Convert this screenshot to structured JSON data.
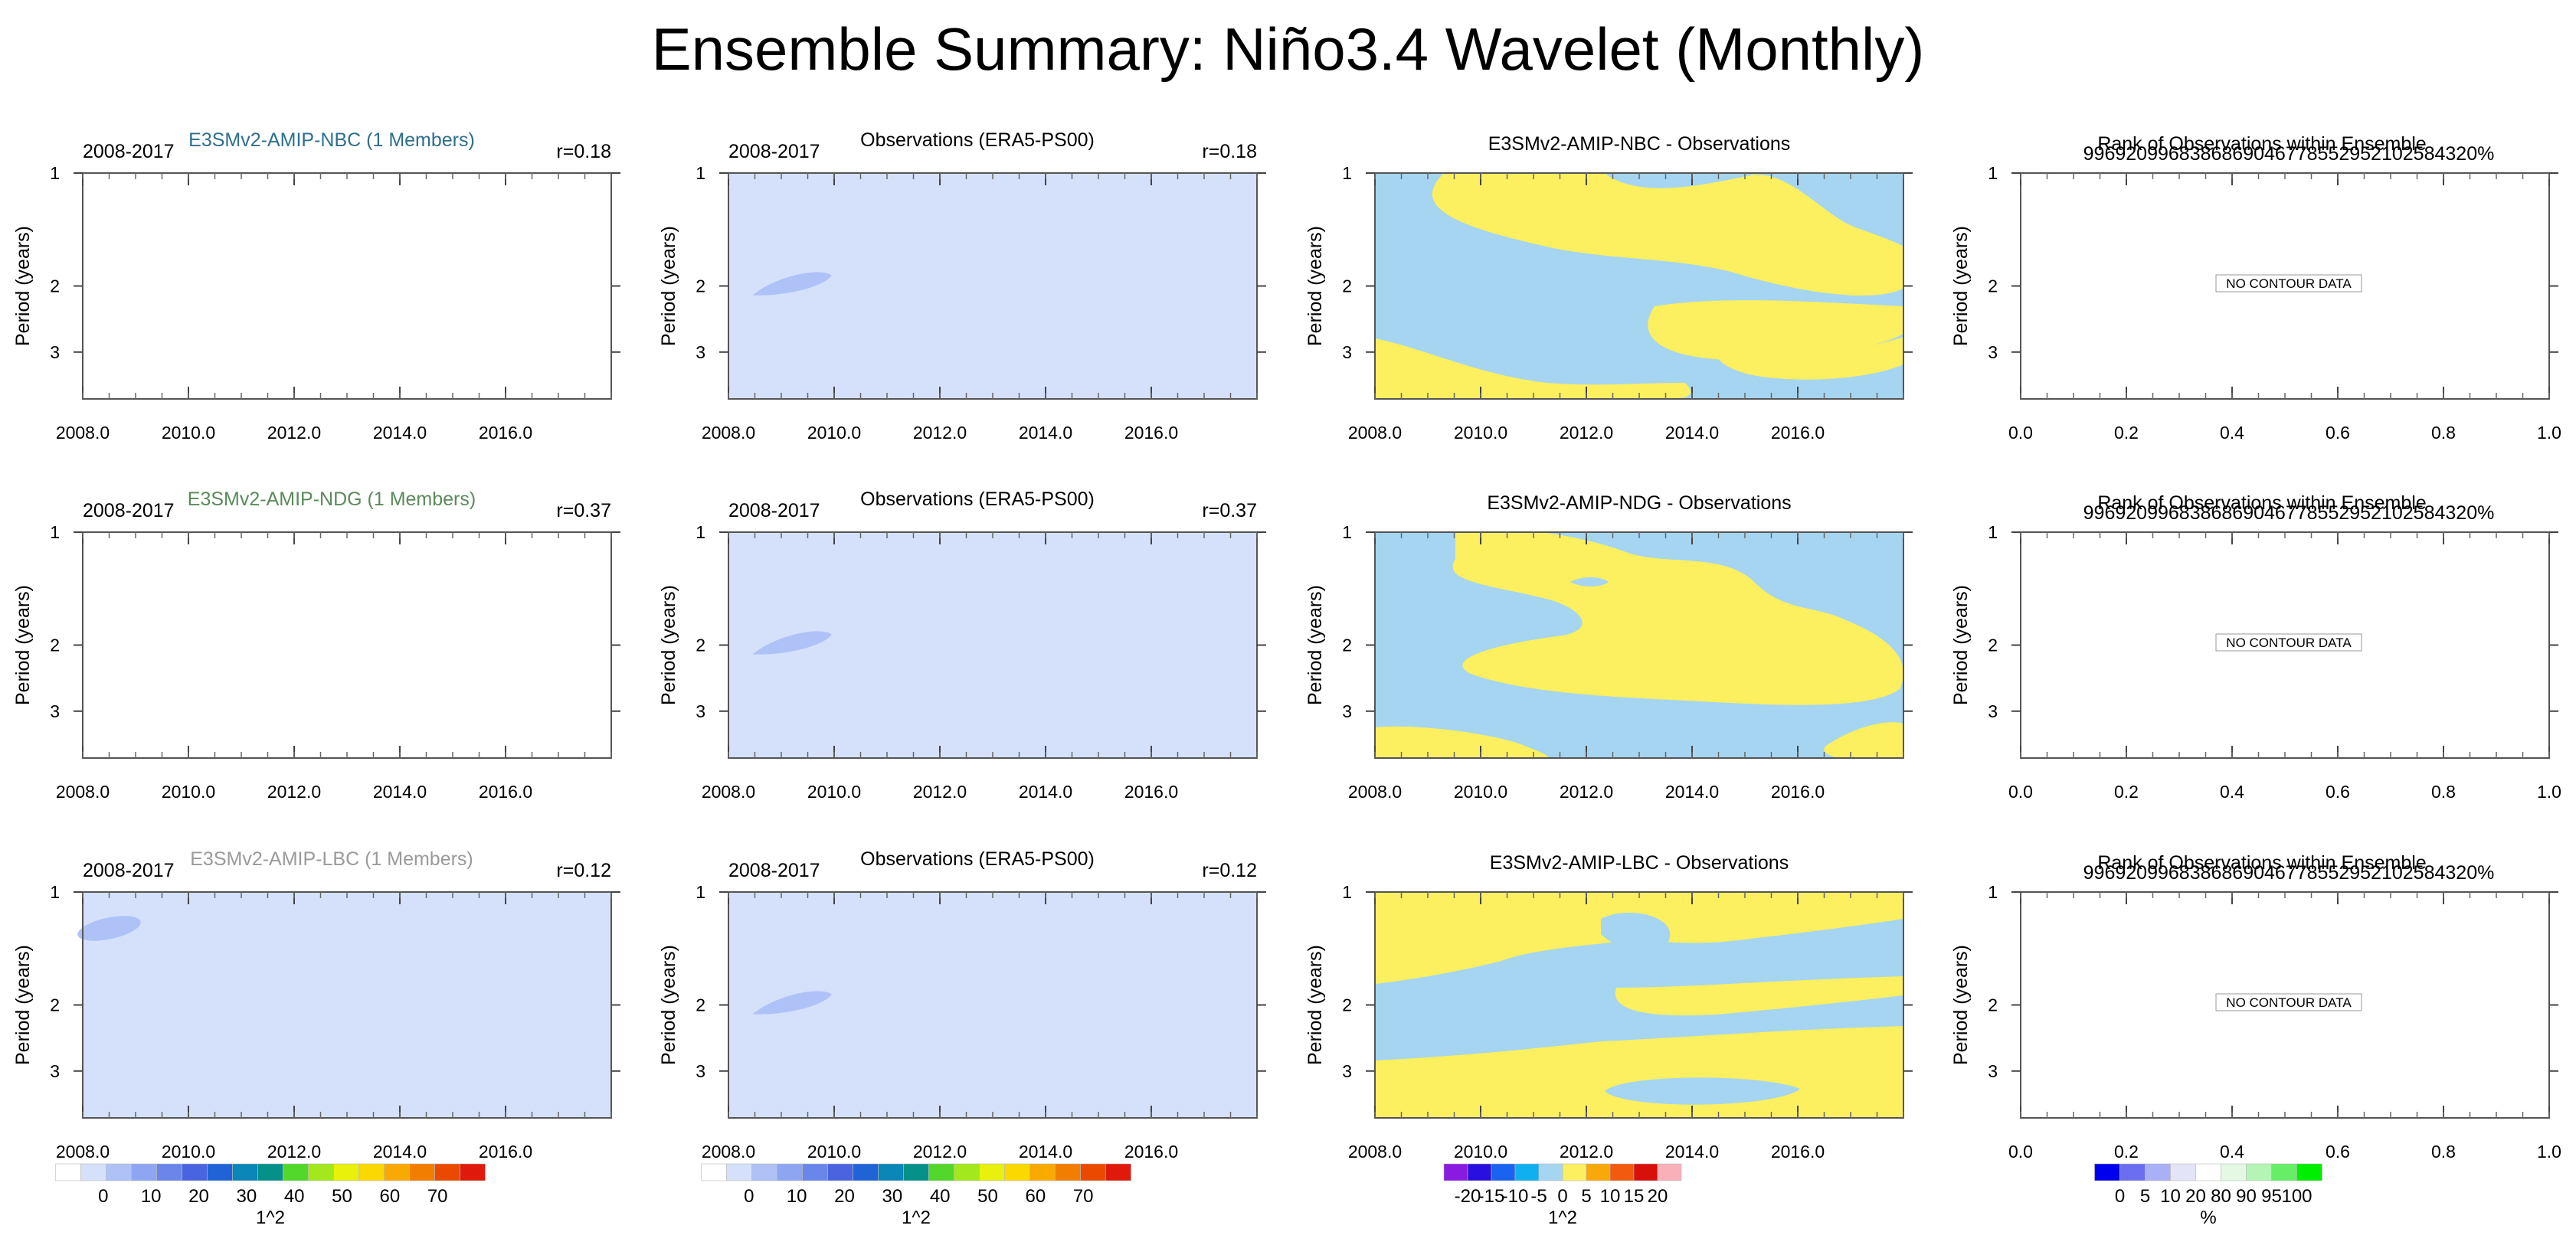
{
  "title": "Ensemble Summary: Niño3.4 Wavelet (Monthly)",
  "colors": {
    "model_titles": [
      "#2e6f8e",
      "#5a8a5a",
      "#9a9a9a"
    ],
    "panel_bg_light": "#d5e0fa",
    "blob": "#aec2f7",
    "diff_negative": "#a5d5f0",
    "diff_positive": "#fcef60"
  },
  "chart_data": [
    {
      "type": "heatmap",
      "panel": "model",
      "row": 1,
      "title": "E3SMv2-AMIP-NBC (1 Members)",
      "left_label": "2008-2017",
      "right_label": "r=0.18",
      "ylabel": "Period (years)",
      "xticks": [
        "2008.0",
        "2010.0",
        "2012.0",
        "2014.0",
        "2016.0"
      ],
      "yticks": [
        "1",
        "2",
        "3"
      ],
      "xlim": [
        2008,
        2018
      ],
      "ylim": [
        1,
        4
      ],
      "ylog": true,
      "filled": false,
      "features": []
    },
    {
      "type": "heatmap",
      "panel": "obs",
      "row": 1,
      "title": "Observations (ERA5-PS00)",
      "left_label": "2008-2017",
      "right_label": "r=0.18",
      "ylabel": "Period (years)",
      "xticks": [
        "2008.0",
        "2010.0",
        "2012.0",
        "2014.0",
        "2016.0"
      ],
      "yticks": [
        "1",
        "2",
        "3"
      ],
      "xlim": [
        2008,
        2018
      ],
      "ylim": [
        1,
        4
      ],
      "ylog": true,
      "filled": true,
      "features": [
        {
          "x": 2009.4,
          "y": 2.0,
          "value_range": "5-10"
        }
      ]
    },
    {
      "type": "heatmap",
      "panel": "diff",
      "row": 1,
      "title": "E3SMv2-AMIP-NBC - Observations",
      "ylabel": "Period (years)",
      "xticks": [
        "2008.0",
        "2010.0",
        "2012.0",
        "2014.0",
        "2016.0"
      ],
      "yticks": [
        "1",
        "2",
        "3"
      ],
      "xlim": [
        2008,
        2018
      ],
      "ylim": [
        1,
        4
      ],
      "ylog": true,
      "pattern": "nbc"
    },
    {
      "type": "heatmap",
      "panel": "rank",
      "row": 1,
      "title": "Rank of Observations within Ensemble",
      "subtitle": "99692099683868690467785529521025843​20%",
      "ylabel": "Period (years)",
      "xticks": [
        "0.0",
        "0.2",
        "0.4",
        "0.6",
        "0.8",
        "1.0"
      ],
      "yticks": [
        "1",
        "2",
        "3"
      ],
      "xlim": [
        0,
        1
      ],
      "ylim": [
        1,
        4
      ],
      "ylog": true,
      "note": "NO CONTOUR DATA"
    },
    {
      "type": "heatmap",
      "panel": "model",
      "row": 2,
      "title": "E3SMv2-AMIP-NDG (1 Members)",
      "left_label": "2008-2017",
      "right_label": "r=0.37",
      "ylabel": "Period (years)",
      "xticks": [
        "2008.0",
        "2010.0",
        "2012.0",
        "2014.0",
        "2016.0"
      ],
      "yticks": [
        "1",
        "2",
        "3"
      ],
      "xlim": [
        2008,
        2018
      ],
      "ylim": [
        1,
        4
      ],
      "ylog": true,
      "filled": false,
      "features": []
    },
    {
      "type": "heatmap",
      "panel": "obs",
      "row": 2,
      "title": "Observations (ERA5-PS00)",
      "left_label": "2008-2017",
      "right_label": "r=0.37",
      "ylabel": "Period (years)",
      "xticks": [
        "2008.0",
        "2010.0",
        "2012.0",
        "2014.0",
        "2016.0"
      ],
      "yticks": [
        "1",
        "2",
        "3"
      ],
      "xlim": [
        2008,
        2018
      ],
      "ylim": [
        1,
        4
      ],
      "ylog": true,
      "filled": true,
      "features": [
        {
          "x": 2009.4,
          "y": 2.0,
          "value_range": "5-10"
        }
      ]
    },
    {
      "type": "heatmap",
      "panel": "diff",
      "row": 2,
      "title": "E3SMv2-AMIP-NDG - Observations",
      "ylabel": "Period (years)",
      "xticks": [
        "2008.0",
        "2010.0",
        "2012.0",
        "2014.0",
        "2016.0"
      ],
      "yticks": [
        "1",
        "2",
        "3"
      ],
      "xlim": [
        2008,
        2018
      ],
      "ylim": [
        1,
        4
      ],
      "ylog": true,
      "pattern": "ndg"
    },
    {
      "type": "heatmap",
      "panel": "rank",
      "row": 2,
      "title": "Rank of Observations within Ensemble",
      "subtitle": "99692099683868690467785529521025843​20%",
      "ylabel": "Period (years)",
      "xticks": [
        "0.0",
        "0.2",
        "0.4",
        "0.6",
        "0.8",
        "1.0"
      ],
      "yticks": [
        "1",
        "2",
        "3"
      ],
      "xlim": [
        0,
        1
      ],
      "ylim": [
        1,
        4
      ],
      "ylog": true,
      "note": "NO CONTOUR DATA"
    },
    {
      "type": "heatmap",
      "panel": "model",
      "row": 3,
      "title": "E3SMv2-AMIP-LBC (1 Members)",
      "left_label": "2008-2017",
      "right_label": "r=0.12",
      "ylabel": "Period (years)",
      "xticks": [
        "2008.0",
        "2010.0",
        "2012.0",
        "2014.0",
        "2016.0"
      ],
      "yticks": [
        "1",
        "2",
        "3"
      ],
      "xlim": [
        2008,
        2018
      ],
      "ylim": [
        1,
        4
      ],
      "ylog": true,
      "filled": true,
      "features": [
        {
          "x": 2008.5,
          "y": 1.25,
          "value_range": "5-10"
        }
      ],
      "colorbar": {
        "levels": [
          "0",
          "10",
          "20",
          "30",
          "40",
          "50",
          "60",
          "70"
        ],
        "unit": "1^2",
        "colors": [
          "#ffffff",
          "#d5e0fa",
          "#aec2f7",
          "#8ea6f2",
          "#6a86ea",
          "#4a64e0",
          "#1f63d6",
          "#0a86b8",
          "#06908a",
          "#52d82a",
          "#a3e81c",
          "#e8f00c",
          "#fbd800",
          "#f8aa00",
          "#f27e00",
          "#ea4a00",
          "#e01a0a"
        ]
      }
    },
    {
      "type": "heatmap",
      "panel": "obs",
      "row": 3,
      "title": "Observations (ERA5-PS00)",
      "left_label": "2008-2017",
      "right_label": "r=0.12",
      "ylabel": "Period (years)",
      "xticks": [
        "2008.0",
        "2010.0",
        "2012.0",
        "2014.0",
        "2016.0"
      ],
      "yticks": [
        "1",
        "2",
        "3"
      ],
      "xlim": [
        2008,
        2018
      ],
      "ylim": [
        1,
        4
      ],
      "ylog": true,
      "filled": true,
      "features": [
        {
          "x": 2009.4,
          "y": 2.0,
          "value_range": "5-10"
        }
      ],
      "colorbar": {
        "levels": [
          "0",
          "10",
          "20",
          "30",
          "40",
          "50",
          "60",
          "70"
        ],
        "unit": "1^2",
        "colors": [
          "#ffffff",
          "#d5e0fa",
          "#aec2f7",
          "#8ea6f2",
          "#6a86ea",
          "#4a64e0",
          "#1f63d6",
          "#0a86b8",
          "#06908a",
          "#52d82a",
          "#a3e81c",
          "#e8f00c",
          "#fbd800",
          "#f8aa00",
          "#f27e00",
          "#ea4a00",
          "#e01a0a"
        ]
      }
    },
    {
      "type": "heatmap",
      "panel": "diff",
      "row": 3,
      "title": "E3SMv2-AMIP-LBC - Observations",
      "ylabel": "Period (years)",
      "xticks": [
        "2008.0",
        "2010.0",
        "2012.0",
        "2014.0",
        "2016.0"
      ],
      "yticks": [
        "1",
        "2",
        "3"
      ],
      "xlim": [
        2008,
        2018
      ],
      "ylim": [
        1,
        4
      ],
      "ylog": true,
      "pattern": "lbc",
      "colorbar": {
        "levels": [
          "-20",
          "-15",
          "-10",
          "-5",
          "0",
          "5",
          "10",
          "15",
          "20"
        ],
        "unit": "1^2",
        "colors": [
          "#8a1ae0",
          "#2a10e0",
          "#1a62f0",
          "#10b0ee",
          "#a5d5f0",
          "#fcef60",
          "#f8a808",
          "#f25a10",
          "#d8100a",
          "#f9b0b8"
        ]
      }
    },
    {
      "type": "heatmap",
      "panel": "rank",
      "row": 3,
      "title": "Rank of Observations within Ensemble",
      "subtitle": "99692099683868690467785529521025843​20%",
      "ylabel": "Period (years)",
      "xticks": [
        "0.0",
        "0.2",
        "0.4",
        "0.6",
        "0.8",
        "1.0"
      ],
      "yticks": [
        "1",
        "2",
        "3"
      ],
      "xlim": [
        0,
        1
      ],
      "ylim": [
        1,
        4
      ],
      "ylog": true,
      "note": "NO CONTOUR DATA",
      "colorbar": {
        "levels": [
          "0",
          "5",
          "10",
          "20",
          "80",
          "90",
          "95",
          "100"
        ],
        "unit": "%",
        "colors": [
          "#0000ee",
          "#6a6ef0",
          "#aab0f6",
          "#e4e4f8",
          "#ffffff",
          "#e4f8e4",
          "#b4f4b4",
          "#66ee66",
          "#00ee00"
        ]
      }
    }
  ]
}
